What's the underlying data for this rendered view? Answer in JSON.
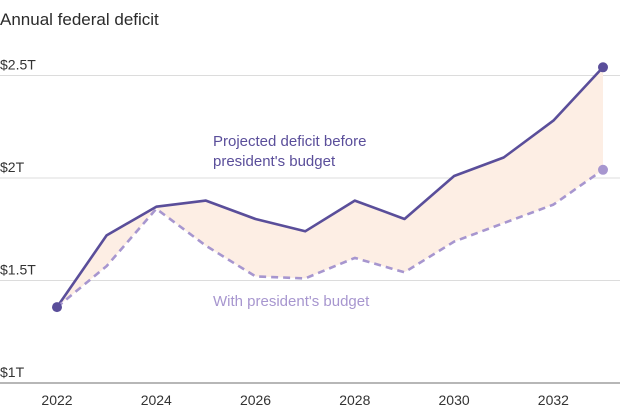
{
  "chart_data": {
    "type": "line",
    "title": "Annual federal deficit",
    "xlabel": "",
    "ylabel": "",
    "x": [
      2022,
      2023,
      2024,
      2025,
      2026,
      2027,
      2028,
      2029,
      2030,
      2031,
      2032,
      2033
    ],
    "x_ticks": [
      "2022",
      "2024",
      "2026",
      "2028",
      "2030",
      "2032"
    ],
    "x_tick_values": [
      2022,
      2024,
      2026,
      2028,
      2030,
      2032
    ],
    "xlim": [
      2022,
      2033
    ],
    "ylim": [
      1.0,
      2.6
    ],
    "y_ticks": [
      "$1T",
      "$1.5T",
      "$2T",
      "$2.5T"
    ],
    "y_tick_values": [
      1.0,
      1.5,
      2.0,
      2.5
    ],
    "grid": "horizontal",
    "series": [
      {
        "name": "Projected deficit before president's budget",
        "label_lines": [
          "Projected deficit before",
          "president's budget"
        ],
        "style": "solid",
        "color": "#5a4e9a",
        "values": [
          1.37,
          1.72,
          1.86,
          1.89,
          1.8,
          1.74,
          1.89,
          1.8,
          2.01,
          2.1,
          2.28,
          2.54
        ]
      },
      {
        "name": "With president's budget",
        "label_lines": [
          "With president's budget"
        ],
        "style": "dashed",
        "color": "#a796cf",
        "values": [
          1.37,
          1.57,
          1.85,
          1.67,
          1.52,
          1.51,
          1.61,
          1.54,
          1.69,
          1.78,
          1.87,
          2.04
        ]
      }
    ],
    "fill_between_color": "#fdeee4"
  }
}
